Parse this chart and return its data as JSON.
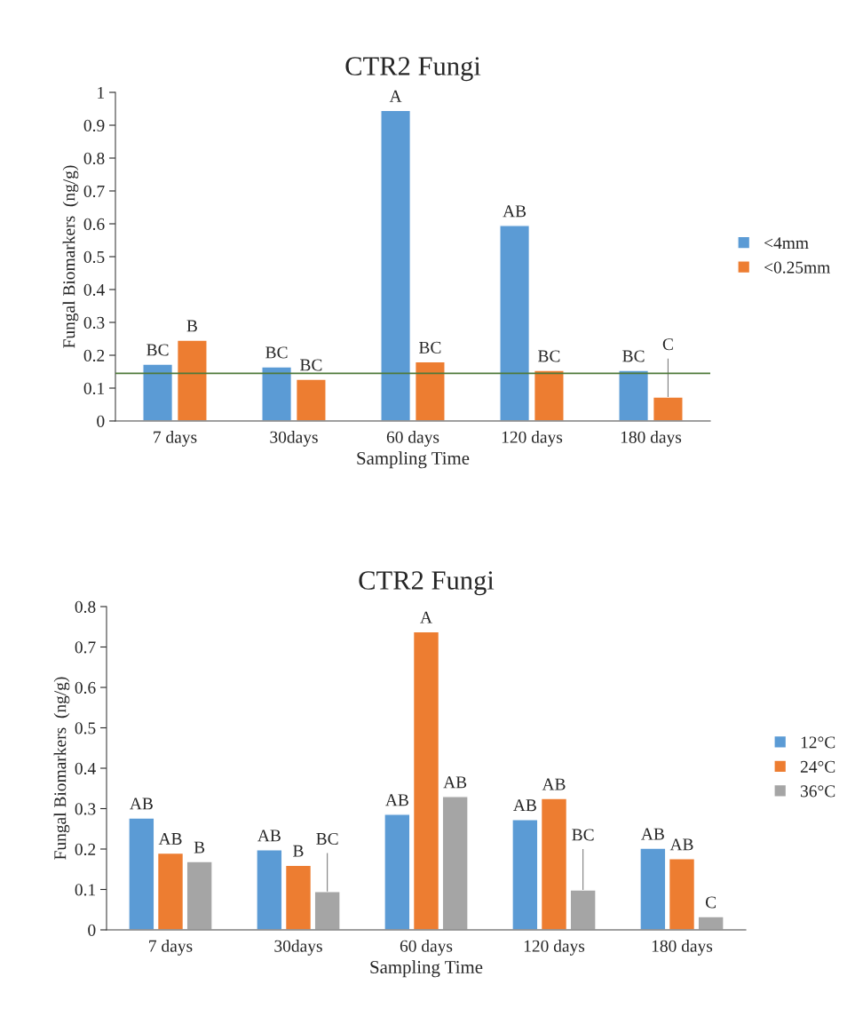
{
  "chart_data": [
    {
      "type": "bar",
      "title": "CTR2 Fungi",
      "xlabel": "Sampling Time",
      "ylabel": "Fungal Biomarkers  (ng/g)",
      "categories": [
        "7 days",
        "30days",
        "60 days",
        "120 days",
        "180 days"
      ],
      "series": [
        {
          "name": "<4mm",
          "color": "#5b9bd5",
          "values": [
            0.173,
            0.165,
            0.945,
            0.595,
            0.154
          ],
          "value_labels": [
            "BC",
            "BC",
            "A",
            "AB",
            "BC"
          ]
        },
        {
          "name": "<0.25mm",
          "color": "#ed7d31",
          "values": [
            0.246,
            0.127,
            0.18,
            0.154,
            0.073
          ],
          "value_labels": [
            "B",
            "BC",
            "BC",
            "BC",
            "C"
          ],
          "errors": [
            null,
            null,
            null,
            null,
            [
              0.073,
              0.19
            ]
          ]
        }
      ],
      "ylim": [
        0,
        1
      ],
      "yticks": [
        0,
        0.1,
        0.2,
        0.3,
        0.4,
        0.5,
        0.6,
        0.7,
        0.8,
        0.9,
        1
      ],
      "ref_lines": [
        {
          "axis": "y",
          "value": 0.145,
          "color": "#4f7a3a"
        }
      ],
      "legend": "right",
      "grid": false
    },
    {
      "type": "bar",
      "title": "CTR2 Fungi",
      "xlabel": "Sampling Time",
      "ylabel": "Fungal Biomarkers  (ng/g)",
      "categories": [
        "7 days",
        "30days",
        "60 days",
        "120 days",
        "180 days"
      ],
      "series": [
        {
          "name": "12°C",
          "color": "#5b9bd5",
          "values": [
            0.277,
            0.198,
            0.286,
            0.273,
            0.202
          ],
          "value_labels": [
            "AB",
            "AB",
            "AB",
            "AB",
            "AB"
          ]
        },
        {
          "name": "24°C",
          "color": "#ed7d31",
          "values": [
            0.19,
            0.16,
            0.738,
            0.325,
            0.176
          ],
          "value_labels": [
            "AB",
            "B",
            "A",
            "AB",
            "AB"
          ]
        },
        {
          "name": "36°C",
          "color": "#a5a5a5",
          "values": [
            0.169,
            0.095,
            0.33,
            0.099,
            0.033
          ],
          "value_labels": [
            "B",
            "BC",
            "AB",
            "BC",
            "C"
          ],
          "errors": [
            null,
            [
              0.095,
              0.19
            ],
            null,
            [
              0.099,
              0.2
            ],
            null
          ]
        }
      ],
      "ylim": [
        0,
        0.8
      ],
      "yticks": [
        0,
        0.1,
        0.2,
        0.3,
        0.4,
        0.5,
        0.6,
        0.7,
        0.8
      ],
      "legend": "right",
      "grid": false
    }
  ]
}
